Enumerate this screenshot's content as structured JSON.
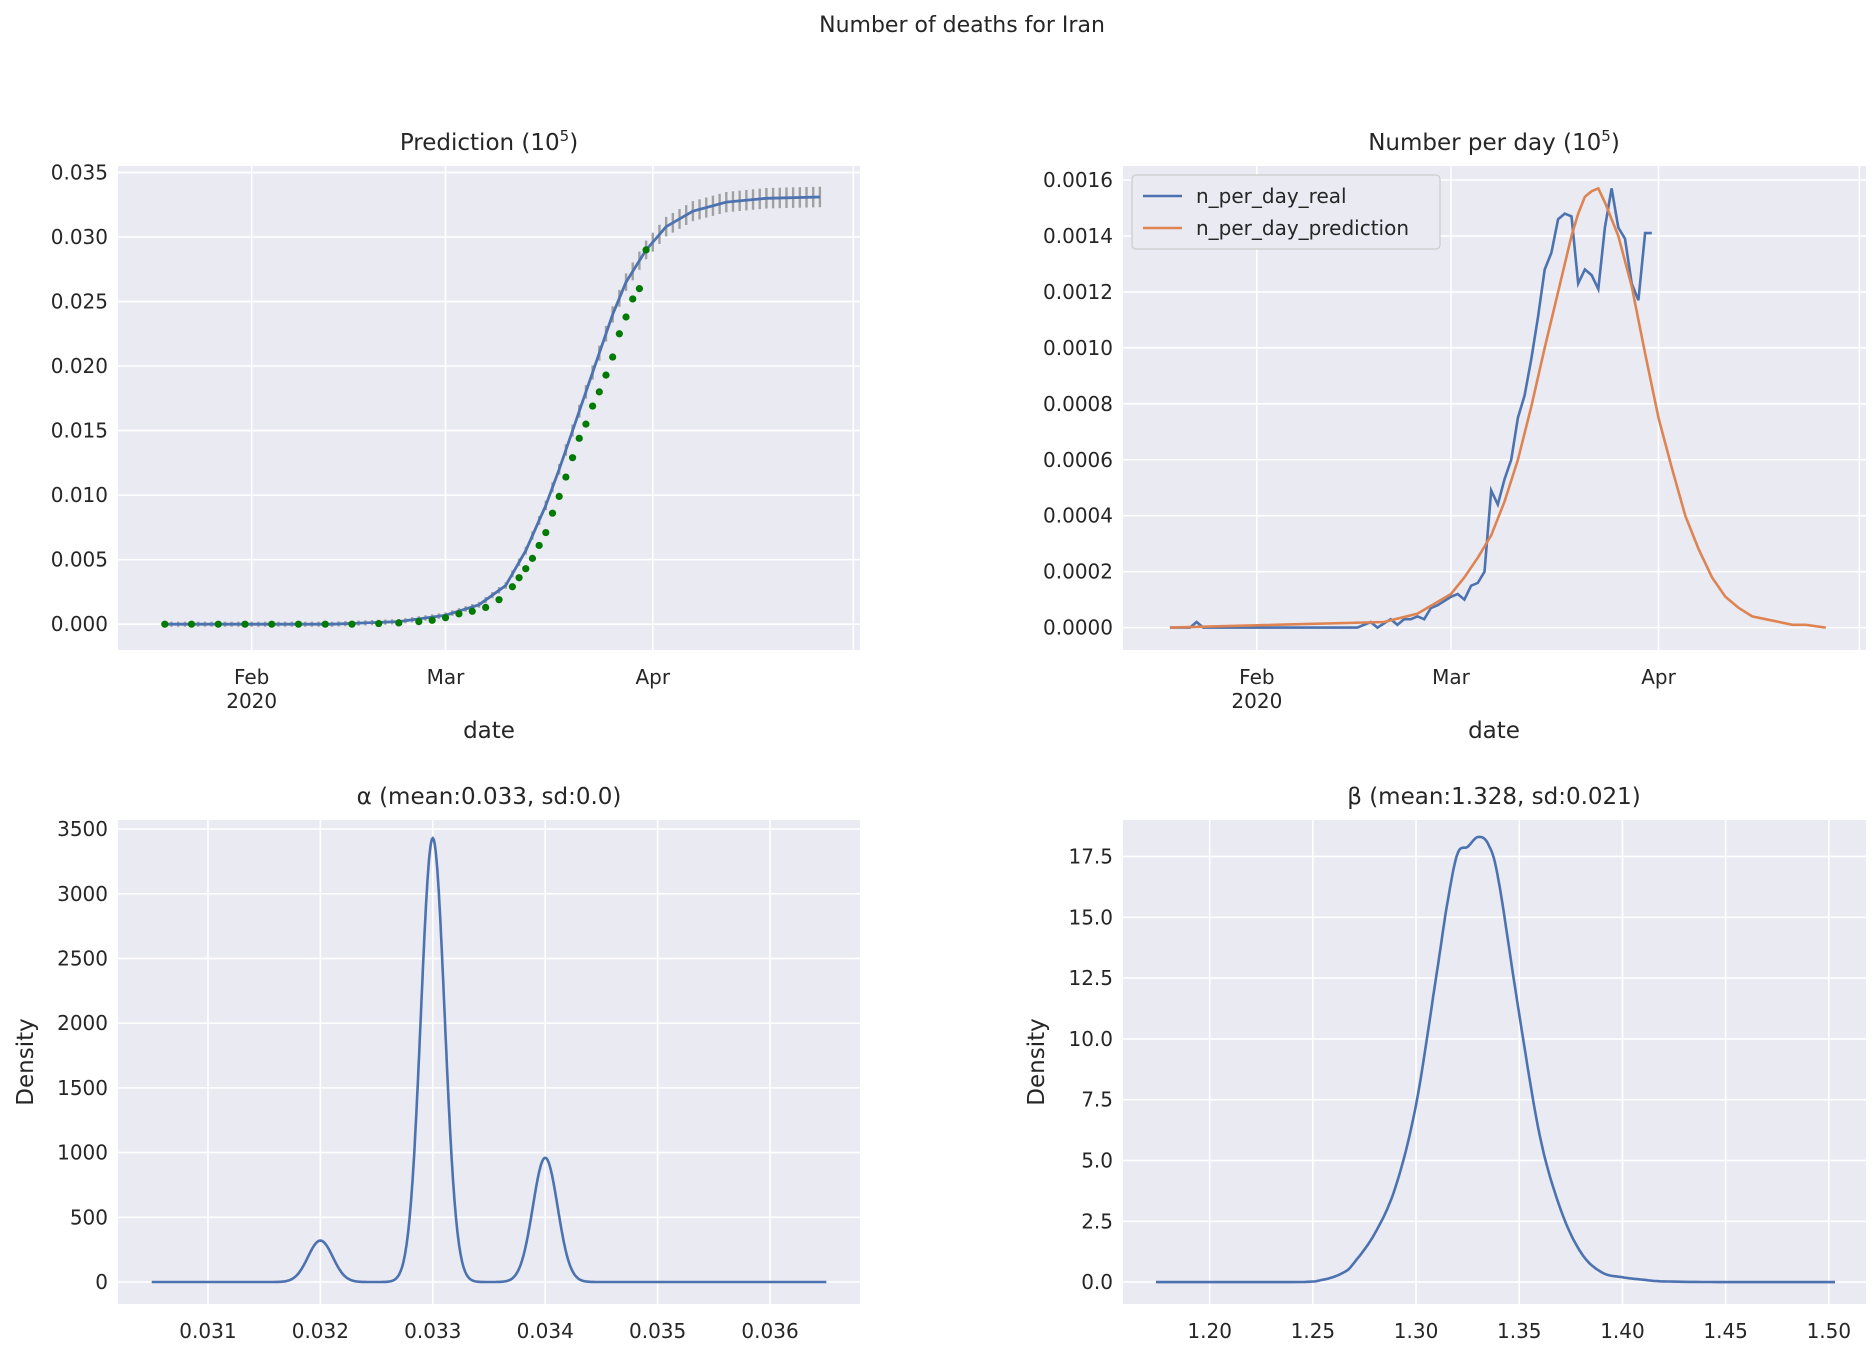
{
  "figure": {
    "suptitle": "Number of deaths for Iran"
  },
  "colors": {
    "axes_bg": "#eaeaf2",
    "grid": "#ffffff",
    "blue": "#4c72b0",
    "orange": "#dd8452",
    "green": "#007a00",
    "bars": "#a0a0a0",
    "text": "#262626"
  },
  "chart_data": [
    {
      "type": "line",
      "title": "Prediction (10^5)",
      "xlabel": "date",
      "ylabel": "",
      "x_ticks": [
        "Feb\n2020",
        "Mar",
        "Apr"
      ],
      "y_ticks": [
        "0.000",
        "0.005",
        "0.010",
        "0.015",
        "0.020",
        "0.025",
        "0.030",
        "0.035"
      ],
      "ylim": [
        -0.002,
        0.0355
      ],
      "x_range": [
        "2020-01-19",
        "2020-04-26"
      ],
      "series": [
        {
          "kind": "fit-line",
          "x": [
            "2020-01-19",
            "2020-02-13",
            "2020-02-23",
            "2020-03-01",
            "2020-03-06",
            "2020-03-10",
            "2020-03-13",
            "2020-03-16",
            "2020-03-18",
            "2020-03-20",
            "2020-03-22",
            "2020-03-24",
            "2020-03-26",
            "2020-03-28",
            "2020-03-31",
            "2020-04-03",
            "2020-04-07",
            "2020-04-12",
            "2020-04-18",
            "2020-04-26"
          ],
          "y": [
            0.0,
            0.0,
            0.0002,
            0.0007,
            0.0015,
            0.003,
            0.0057,
            0.0092,
            0.012,
            0.015,
            0.018,
            0.021,
            0.024,
            0.0265,
            0.029,
            0.0308,
            0.032,
            0.0327,
            0.033,
            0.0331
          ]
        },
        {
          "kind": "observed-points",
          "x": [
            "2020-01-19",
            "2020-01-23",
            "2020-01-27",
            "2020-01-31",
            "2020-02-04",
            "2020-02-08",
            "2020-02-12",
            "2020-02-16",
            "2020-02-20",
            "2020-02-23",
            "2020-02-26",
            "2020-02-28",
            "2020-03-01",
            "2020-03-03",
            "2020-03-05",
            "2020-03-07",
            "2020-03-09",
            "2020-03-11",
            "2020-03-12",
            "2020-03-13",
            "2020-03-14",
            "2020-03-15",
            "2020-03-16",
            "2020-03-17",
            "2020-03-18",
            "2020-03-19",
            "2020-03-20",
            "2020-03-21",
            "2020-03-22",
            "2020-03-23",
            "2020-03-24",
            "2020-03-25",
            "2020-03-26",
            "2020-03-27",
            "2020-03-28",
            "2020-03-29",
            "2020-03-30"
          ],
          "y": [
            0.0,
            0.0,
            0.0,
            0.0,
            0.0,
            0.0,
            0.0,
            0.0,
            5e-05,
            0.0001,
            0.0002,
            0.0003,
            0.0005,
            0.0008,
            0.001,
            0.0013,
            0.0019,
            0.0029,
            0.0036,
            0.0043,
            0.0051,
            0.0061,
            0.0071,
            0.0086,
            0.0099,
            0.0114,
            0.0129,
            0.0144,
            0.0155,
            0.0169,
            0.018,
            0.0193,
            0.0207,
            0.0225,
            0.0238,
            0.0252,
            0.026
          ]
        },
        {
          "kind": "observed-point-last",
          "x": [
            "2020-03-31"
          ],
          "y": [
            0.029
          ]
        }
      ]
    },
    {
      "type": "line",
      "title": "Number per day (10^5)",
      "xlabel": "date",
      "ylabel": "",
      "x_ticks": [
        "Feb\n2020",
        "Mar",
        "Apr"
      ],
      "y_ticks": [
        "0.0000",
        "0.0002",
        "0.0004",
        "0.0006",
        "0.0008",
        "0.0010",
        "0.0012",
        "0.0014",
        "0.0016"
      ],
      "ylim": [
        -8e-05,
        0.00165
      ],
      "x_range": [
        "2020-01-19",
        "2020-04-26"
      ],
      "legend": {
        "placement": "top-left",
        "entries": [
          "n_per_day_real",
          "n_per_day_prediction"
        ]
      },
      "series": [
        {
          "name": "n_per_day_real",
          "x": [
            "2020-01-19",
            "2020-01-22",
            "2020-01-23",
            "2020-01-24",
            "2020-02-12",
            "2020-02-16",
            "2020-02-18",
            "2020-02-19",
            "2020-02-21",
            "2020-02-22",
            "2020-02-23",
            "2020-02-24",
            "2020-02-25",
            "2020-02-26",
            "2020-02-27",
            "2020-02-28",
            "2020-03-01",
            "2020-03-02",
            "2020-03-03",
            "2020-03-04",
            "2020-03-05",
            "2020-03-06",
            "2020-03-07",
            "2020-03-08",
            "2020-03-09",
            "2020-03-10",
            "2020-03-11",
            "2020-03-12",
            "2020-03-13",
            "2020-03-14",
            "2020-03-15",
            "2020-03-16",
            "2020-03-17",
            "2020-03-18",
            "2020-03-19",
            "2020-03-20",
            "2020-03-21",
            "2020-03-22",
            "2020-03-23",
            "2020-03-24",
            "2020-03-25",
            "2020-03-26",
            "2020-03-27",
            "2020-03-28",
            "2020-03-29",
            "2020-03-30",
            "2020-03-31"
          ],
          "y": [
            0.0,
            0.0,
            2e-05,
            0.0,
            0.0,
            0.0,
            2e-05,
            0.0,
            3e-05,
            1e-05,
            3e-05,
            3e-05,
            4e-05,
            3e-05,
            7e-05,
            8e-05,
            0.00011,
            0.00012,
            0.0001,
            0.00015,
            0.00016,
            0.0002,
            0.00049,
            0.00044,
            0.00053,
            0.0006,
            0.00075,
            0.00083,
            0.00096,
            0.00111,
            0.00128,
            0.00134,
            0.00146,
            0.00148,
            0.00147,
            0.00123,
            0.00128,
            0.00126,
            0.00121,
            0.00143,
            0.00157,
            0.00143,
            0.00139,
            0.00123,
            0.00117,
            0.00141,
            0.00141
          ]
        },
        {
          "name": "n_per_day_prediction",
          "x": [
            "2020-01-19",
            "2020-02-20",
            "2020-02-25",
            "2020-03-01",
            "2020-03-03",
            "2020-03-05",
            "2020-03-07",
            "2020-03-09",
            "2020-03-11",
            "2020-03-13",
            "2020-03-15",
            "2020-03-17",
            "2020-03-19",
            "2020-03-20",
            "2020-03-21",
            "2020-03-22",
            "2020-03-23",
            "2020-03-24",
            "2020-03-26",
            "2020-03-28",
            "2020-03-30",
            "2020-04-01",
            "2020-04-03",
            "2020-04-05",
            "2020-04-07",
            "2020-04-09",
            "2020-04-11",
            "2020-04-13",
            "2020-04-15",
            "2020-04-17",
            "2020-04-19",
            "2020-04-21",
            "2020-04-23",
            "2020-04-26"
          ],
          "y": [
            0.0,
            2e-05,
            5e-05,
            0.00012,
            0.00018,
            0.00025,
            0.00033,
            0.00045,
            0.0006,
            0.00079,
            0.001,
            0.0012,
            0.0014,
            0.00148,
            0.00154,
            0.00156,
            0.00157,
            0.00152,
            0.0014,
            0.00122,
            0.00098,
            0.00075,
            0.00057,
            0.0004,
            0.00028,
            0.00018,
            0.00011,
            7e-05,
            4e-05,
            3e-05,
            2e-05,
            1e-05,
            1e-05,
            0.0
          ]
        }
      ]
    },
    {
      "type": "area",
      "title": "α (mean:0.033, sd:0.0)",
      "xlabel": "",
      "ylabel": "Density",
      "x_ticks": [
        "0.031",
        "0.032",
        "0.033",
        "0.034",
        "0.035",
        "0.036"
      ],
      "y_ticks": [
        "0",
        "500",
        "1000",
        "1500",
        "2000",
        "2500",
        "3000",
        "3500"
      ],
      "xlim": [
        0.0302,
        0.0368
      ],
      "ylim": [
        -170,
        3570
      ],
      "series": [
        {
          "name": "density",
          "peaks": [
            {
              "center": 0.032,
              "height": 320,
              "width": 0.00011
            },
            {
              "center": 0.033,
              "height": 3430,
              "width": 0.000105
            },
            {
              "center": 0.034,
              "height": 960,
              "width": 0.00011
            }
          ],
          "x_range": [
            0.0305,
            0.0365
          ]
        }
      ]
    },
    {
      "type": "area",
      "title": "β (mean:1.328, sd:0.021)",
      "xlabel": "",
      "ylabel": "Density",
      "x_ticks": [
        "1.20",
        "1.25",
        "1.30",
        "1.35",
        "1.40",
        "1.45",
        "1.50"
      ],
      "y_ticks": [
        "0.0",
        "2.5",
        "5.0",
        "7.5",
        "10.0",
        "12.5",
        "15.0",
        "17.5"
      ],
      "xlim": [
        1.158,
        1.518
      ],
      "ylim": [
        -0.9,
        19.0
      ],
      "series": [
        {
          "name": "density",
          "x": [
            1.174,
            1.24,
            1.255,
            1.265,
            1.27,
            1.28,
            1.29,
            1.3,
            1.31,
            1.315,
            1.32,
            1.325,
            1.33,
            1.335,
            1.34,
            1.35,
            1.36,
            1.37,
            1.38,
            1.39,
            1.4,
            1.41,
            1.42,
            1.45,
            1.503
          ],
          "y": [
            0.0,
            0.0,
            0.1,
            0.4,
            0.8,
            2.0,
            3.9,
            7.3,
            12.7,
            15.5,
            17.6,
            17.9,
            18.3,
            18.0,
            16.5,
            11.0,
            6.0,
            3.0,
            1.2,
            0.4,
            0.2,
            0.1,
            0.03,
            0.0,
            0.0
          ]
        }
      ]
    }
  ]
}
